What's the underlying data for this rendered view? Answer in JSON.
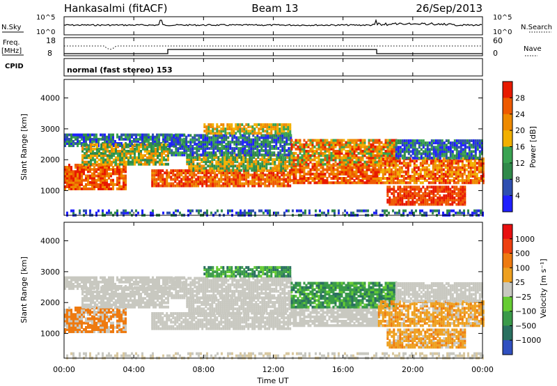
{
  "header": {
    "station": "Hankasalmi (fitACF)",
    "beam": "Beam 13",
    "date": "26/Sep/2013"
  },
  "nsky_panel": {
    "left_label": "N.Sky",
    "left_ticks": [
      "10^5",
      "10^0"
    ],
    "right_ticks": [
      "10^5",
      "10^0"
    ],
    "right_label": "N.Search"
  },
  "freq_panel": {
    "left_label": "Freq.",
    "left_unit": "[MHz]",
    "left_ticks": [
      "18",
      "8"
    ],
    "right_ticks": [
      "60",
      "0"
    ],
    "right_label": "Nave"
  },
  "cpid": {
    "label": "CPID",
    "value": "normal (fast stereo) 153"
  },
  "colors": {
    "power_scale": [
      "#1f1fff",
      "#2e4fb0",
      "#2f8a4a",
      "#3aa352",
      "#f2b000",
      "#ee8a00",
      "#ee5a00",
      "#e81a00"
    ],
    "velocity_scale": [
      "#3050c0",
      "#2a7060",
      "#3a9a4a",
      "#66cc33",
      "#c8c8c0",
      "#eea020",
      "#ee7a10",
      "#ee4010",
      "#e81010"
    ]
  },
  "chart_data": [
    {
      "type": "heatmap",
      "name": "power",
      "ylabel": "Slant Range [km]",
      "yticks": [
        "4000",
        "3000",
        "2000",
        "1000"
      ],
      "ylim": [
        200,
        4600
      ],
      "xlim": [
        "00:00",
        "24:00"
      ],
      "colorbar_label": "Power [dB]",
      "colorbar_ticks": [
        "28",
        "24",
        "20",
        "16",
        "12",
        "8",
        "4"
      ],
      "colorbar_range": [
        0,
        32
      ]
    },
    {
      "type": "heatmap",
      "name": "velocity",
      "ylabel": "Slant Range [km]",
      "yticks": [
        "4000",
        "3000",
        "2000",
        "1000"
      ],
      "ylim": [
        200,
        4600
      ],
      "xlim": [
        "00:00",
        "24:00"
      ],
      "colorbar_label": "Velocity [m s⁻¹]",
      "colorbar_ticks": [
        "1000",
        "500",
        "100",
        "25",
        "−25",
        "−100",
        "−500",
        "−1000"
      ]
    }
  ],
  "xaxis": {
    "ticks": [
      "00:00",
      "04:00",
      "08:00",
      "12:00",
      "16:00",
      "20:00",
      "00:00"
    ],
    "label": "Time UT"
  }
}
